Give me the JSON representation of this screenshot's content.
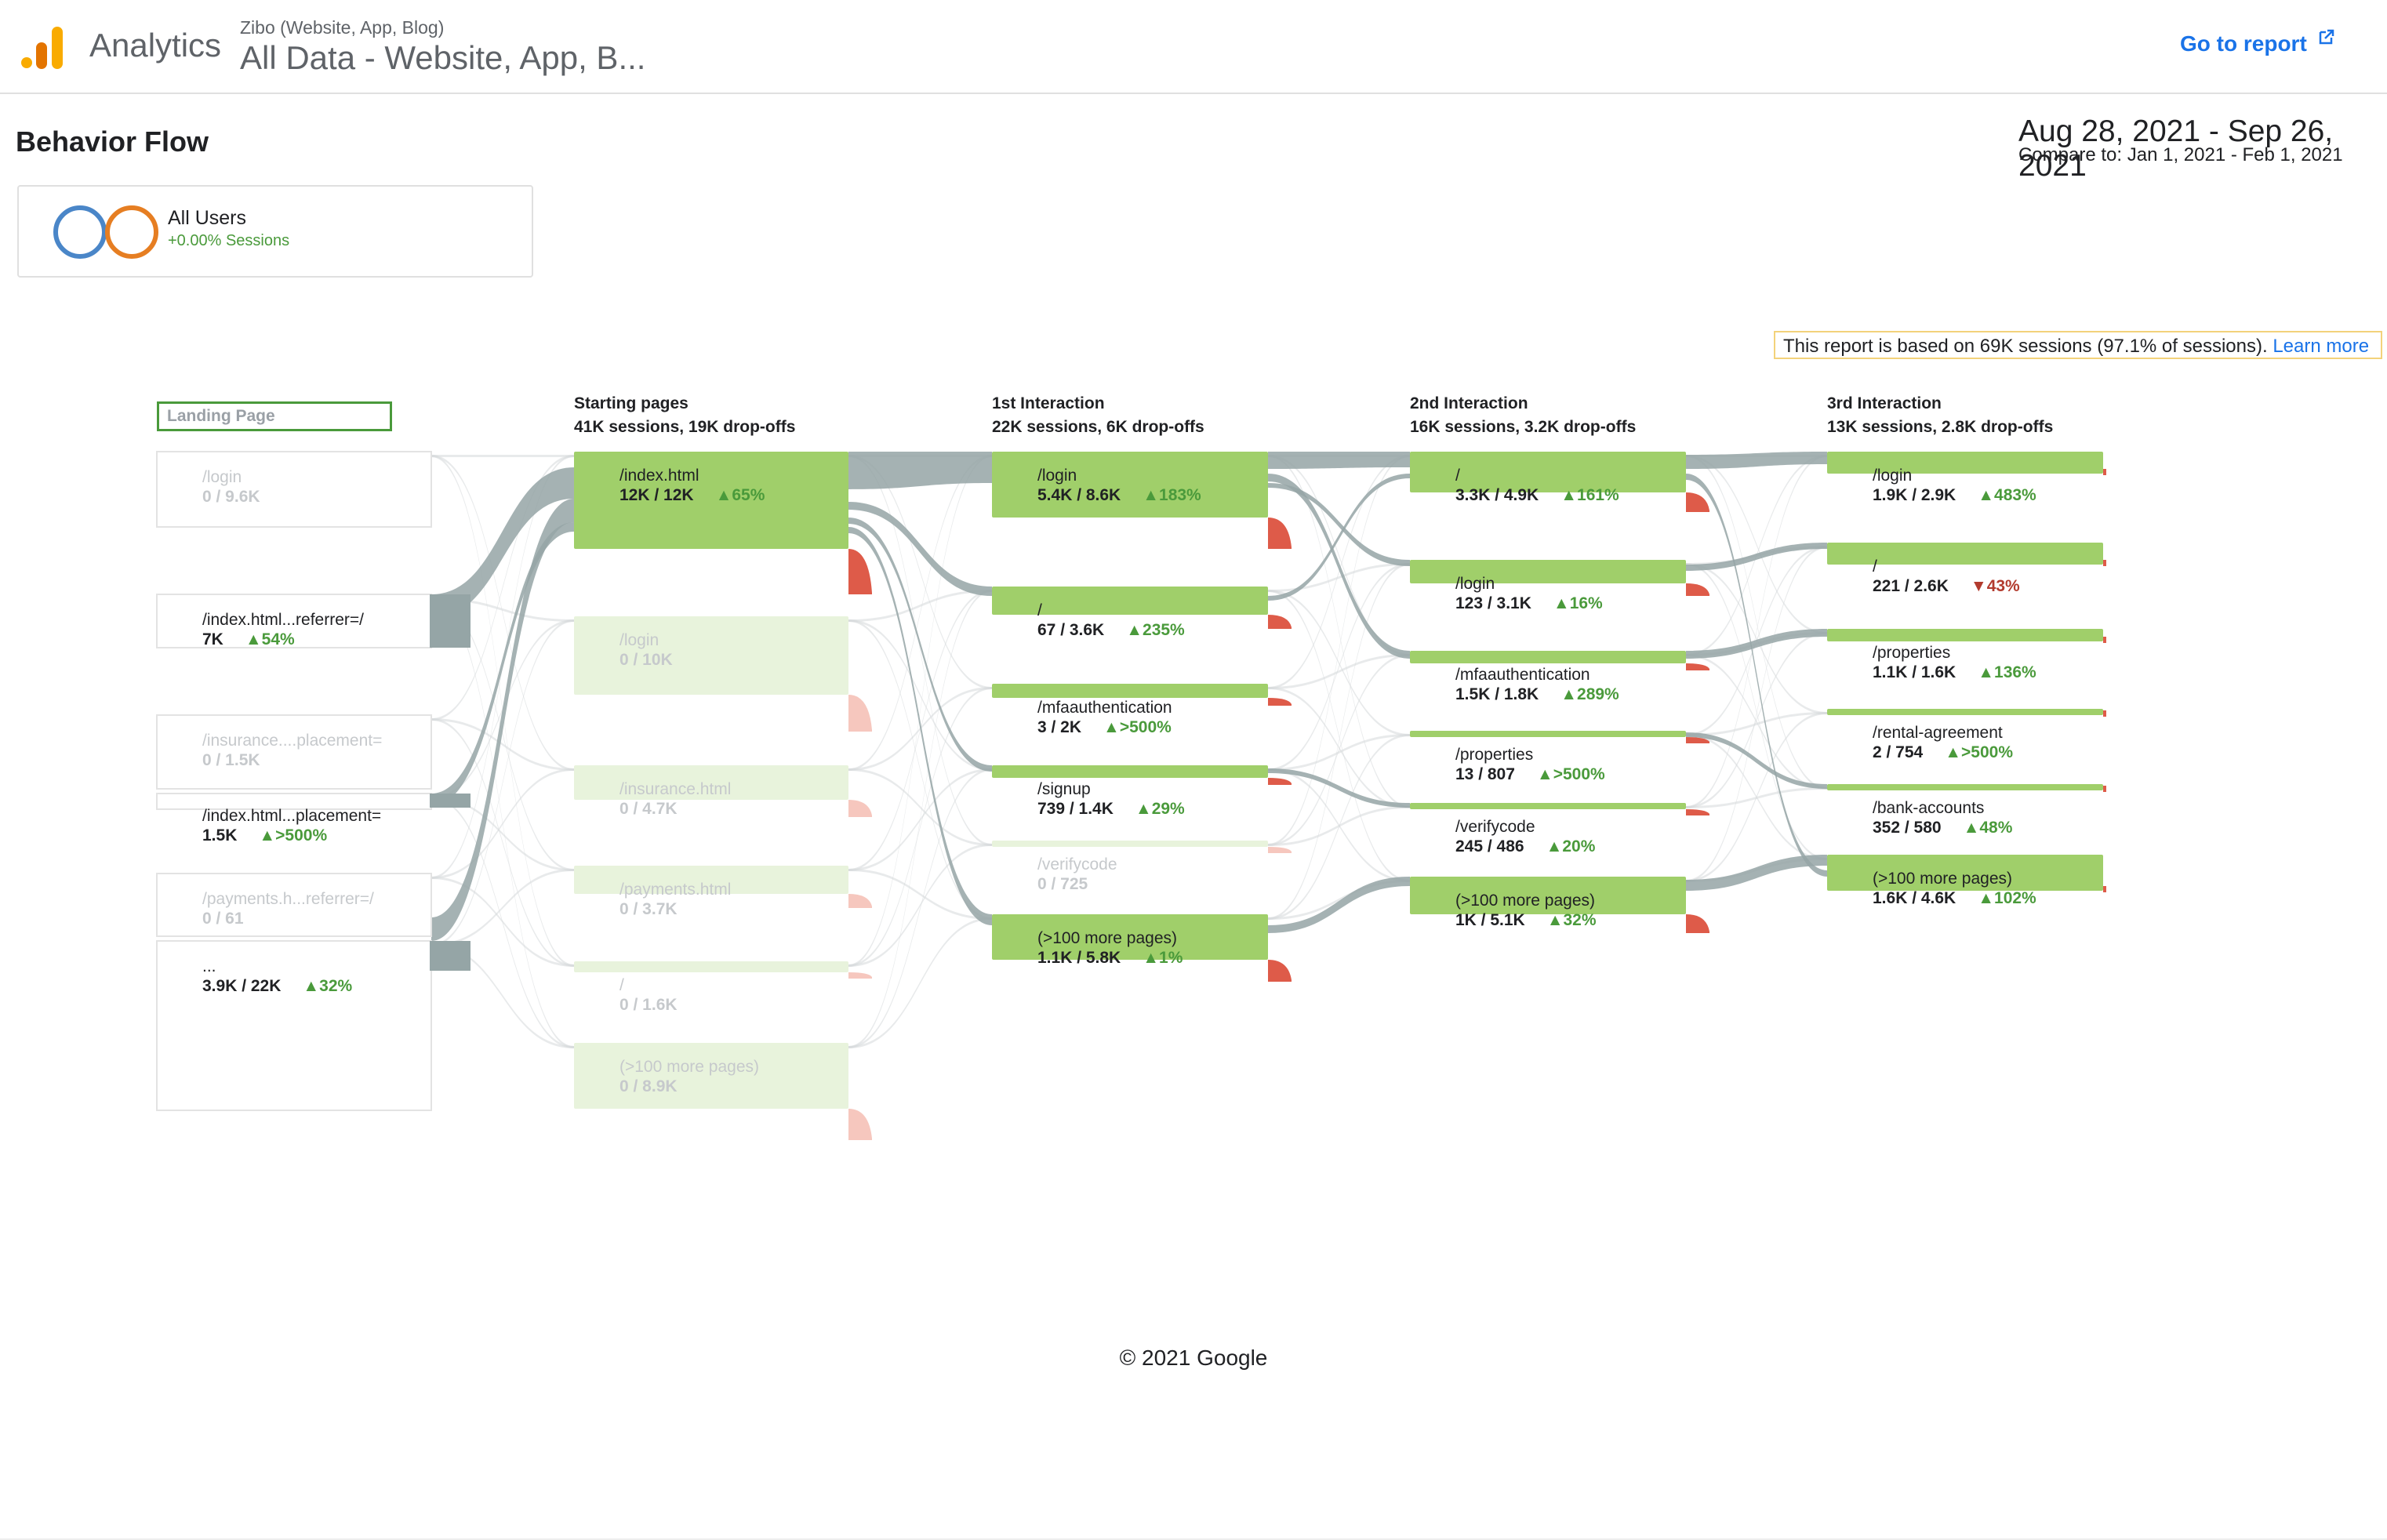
{
  "header": {
    "app_name": "Analytics",
    "account_path": "Zibo (Website, App, Blog)",
    "view_title": "All Data - Website, App, B...",
    "go_to_report": "Go to report",
    "logo_icon": "analytics-bars-icon",
    "external_icon": "external-link-icon"
  },
  "report": {
    "title": "Behavior Flow",
    "date_range": "Aug 28, 2021 - Sep 26, 2021",
    "compare_range": "Compare to: Jan 1, 2021 - Feb 1, 2021"
  },
  "segment": {
    "name": "All Users",
    "delta": "+0.00% Sessions"
  },
  "sampling": {
    "text": "This report is based on 69K sessions (97.1% of sessions).",
    "link": "Learn more"
  },
  "colors": {
    "node_green": "#a0cf6a",
    "node_faded": "#e8f3dc",
    "flow_grey": "#95a5a6",
    "dropoff_red": "#de5b49",
    "accent_blue": "#1a73e8",
    "segment_blue": "#4a86c8",
    "segment_orange": "#e67e22"
  },
  "flow": {
    "landing_dropdown": "Landing Page",
    "columns": [
      {
        "title": "Starting pages",
        "summary": "41K sessions, 19K drop-offs"
      },
      {
        "title": "1st Interaction",
        "summary": "22K sessions, 6K drop-offs"
      },
      {
        "title": "2nd Interaction",
        "summary": "16K sessions, 3.2K drop-offs"
      },
      {
        "title": "3rd Interaction",
        "summary": "13K sessions, 2.8K drop-offs"
      }
    ],
    "landing_nodes": [
      {
        "name": "/login",
        "stat": "0 / 9.6K",
        "delta": "",
        "dir": ""
      },
      {
        "name": "/index.html...referrer=/",
        "stat": "7K",
        "delta": "▲54%",
        "dir": "up"
      },
      {
        "name": "/insurance....placement=",
        "stat": "0 / 1.5K",
        "delta": "",
        "dir": ""
      },
      {
        "name": "/index.html...placement=",
        "stat": "1.5K",
        "delta": "▲>500%",
        "dir": "up"
      },
      {
        "name": "/payments.h...referrer=/",
        "stat": "0 / 61",
        "delta": "",
        "dir": ""
      },
      {
        "name": "...",
        "stat": "3.9K / 22K",
        "delta": "▲32%",
        "dir": "up"
      }
    ],
    "starting_nodes": [
      {
        "name": "/index.html",
        "stat": "12K / 12K",
        "delta": "▲65%",
        "dir": "up"
      },
      {
        "name": "/login",
        "stat": "0 / 10K",
        "delta": "",
        "dir": ""
      },
      {
        "name": "/insurance.html",
        "stat": "0 / 4.7K",
        "delta": "",
        "dir": ""
      },
      {
        "name": "/payments.html",
        "stat": "0 / 3.7K",
        "delta": "",
        "dir": ""
      },
      {
        "name": "/",
        "stat": "0 / 1.6K",
        "delta": "",
        "dir": ""
      },
      {
        "name": "(>100 more pages)",
        "stat": "0 / 8.9K",
        "delta": "",
        "dir": ""
      }
    ],
    "interaction1_nodes": [
      {
        "name": "/login",
        "stat": "5.4K / 8.6K",
        "delta": "▲183%",
        "dir": "up"
      },
      {
        "name": "/",
        "stat": "67 / 3.6K",
        "delta": "▲235%",
        "dir": "up"
      },
      {
        "name": "/mfaauthentication",
        "stat": "3 / 2K",
        "delta": "▲>500%",
        "dir": "up"
      },
      {
        "name": "/signup",
        "stat": "739 / 1.4K",
        "delta": "▲29%",
        "dir": "up"
      },
      {
        "name": "/verifycode",
        "stat": "0 / 725",
        "delta": "",
        "dir": ""
      },
      {
        "name": "(>100 more pages)",
        "stat": "1.1K / 5.8K",
        "delta": "▲1%",
        "dir": "up"
      }
    ],
    "interaction2_nodes": [
      {
        "name": "/",
        "stat": "3.3K / 4.9K",
        "delta": "▲161%",
        "dir": "up"
      },
      {
        "name": "/login",
        "stat": "123 / 3.1K",
        "delta": "▲16%",
        "dir": "up"
      },
      {
        "name": "/mfaauthentication",
        "stat": "1.5K / 1.8K",
        "delta": "▲289%",
        "dir": "up"
      },
      {
        "name": "/properties",
        "stat": "13 / 807",
        "delta": "▲>500%",
        "dir": "up"
      },
      {
        "name": "/verifycode",
        "stat": "245 / 486",
        "delta": "▲20%",
        "dir": "up"
      },
      {
        "name": "(>100 more pages)",
        "stat": "1K / 5.1K",
        "delta": "▲32%",
        "dir": "up"
      }
    ],
    "interaction3_nodes": [
      {
        "name": "/login",
        "stat": "1.9K / 2.9K",
        "delta": "▲483%",
        "dir": "up"
      },
      {
        "name": "/",
        "stat": "221 / 2.6K",
        "delta": "▼43%",
        "dir": "down"
      },
      {
        "name": "/properties",
        "stat": "1.1K / 1.6K",
        "delta": "▲136%",
        "dir": "up"
      },
      {
        "name": "/rental-agreement",
        "stat": "2 / 754",
        "delta": "▲>500%",
        "dir": "up"
      },
      {
        "name": "/bank-accounts",
        "stat": "352 / 580",
        "delta": "▲48%",
        "dir": "up"
      },
      {
        "name": "(>100 more pages)",
        "stat": "1.6K / 4.6K",
        "delta": "▲102%",
        "dir": "up"
      }
    ]
  },
  "footer": {
    "copyright": "© 2021 Google"
  }
}
